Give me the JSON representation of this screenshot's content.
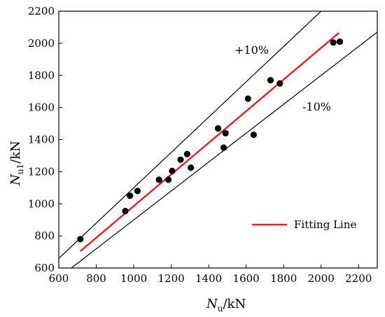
{
  "chart_data": {
    "type": "scatter",
    "title": "",
    "xlabel": {
      "main": "N",
      "sub": "u",
      "unit": "/kN"
    },
    "ylabel": {
      "main": "N",
      "sub": "u1",
      "unit": "/kN"
    },
    "xlim": [
      600,
      2300
    ],
    "ylim": [
      600,
      2200
    ],
    "x_ticks": [
      600,
      800,
      1000,
      1200,
      1400,
      1600,
      1800,
      2000,
      2200
    ],
    "y_ticks": [
      600,
      800,
      1000,
      1200,
      1400,
      1600,
      1800,
      2000,
      2200
    ],
    "grid": false,
    "legend": {
      "position": "bottom-right",
      "entries": [
        "Fitting Line"
      ]
    },
    "points": [
      {
        "x": 715,
        "y": 780
      },
      {
        "x": 955,
        "y": 955
      },
      {
        "x": 980,
        "y": 1050
      },
      {
        "x": 1020,
        "y": 1080
      },
      {
        "x": 1135,
        "y": 1150
      },
      {
        "x": 1185,
        "y": 1150
      },
      {
        "x": 1205,
        "y": 1205
      },
      {
        "x": 1250,
        "y": 1275
      },
      {
        "x": 1285,
        "y": 1310
      },
      {
        "x": 1305,
        "y": 1225
      },
      {
        "x": 1450,
        "y": 1470
      },
      {
        "x": 1480,
        "y": 1350
      },
      {
        "x": 1490,
        "y": 1440
      },
      {
        "x": 1610,
        "y": 1655
      },
      {
        "x": 1640,
        "y": 1430
      },
      {
        "x": 1730,
        "y": 1770
      },
      {
        "x": 1780,
        "y": 1750
      },
      {
        "x": 2065,
        "y": 2005
      },
      {
        "x": 2100,
        "y": 2010
      }
    ],
    "fit_line": {
      "name": "Fitting Line",
      "color": "#e8242a",
      "x": [
        715,
        2095
      ],
      "y": [
        705,
        2065
      ]
    },
    "upper_bound": {
      "label": "+10%",
      "factor": 1.1
    },
    "lower_bound": {
      "label": "-10%",
      "factor": 0.9
    }
  }
}
